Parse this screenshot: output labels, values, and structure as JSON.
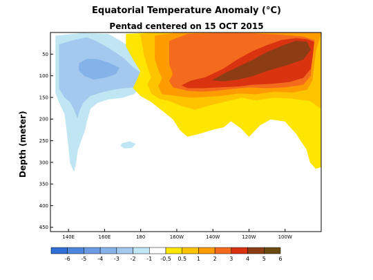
{
  "chart_data": {
    "type": "heatmap",
    "title": "Equatorial Temperature Anomaly (°C)",
    "subtitle": "Pentad centered on 15 OCT 2015",
    "ylabel": "Depth (meter)",
    "xlabel": "",
    "x_ticks": [
      "140E",
      "160E",
      "180",
      "160W",
      "140W",
      "120W",
      "100W"
    ],
    "x_tick_lon": [
      140,
      160,
      180,
      200,
      220,
      240,
      260
    ],
    "xlim": [
      130,
      280
    ],
    "y_ticks": [
      50,
      100,
      150,
      200,
      250,
      300,
      350,
      400,
      450
    ],
    "ylim": [
      0,
      460
    ],
    "y_inverted": true,
    "colorbar": {
      "labels": [
        "-6",
        "-5",
        "-4",
        "-3",
        "-2",
        "-1",
        "-0.5",
        "0.5",
        "1",
        "2",
        "3",
        "4",
        "5",
        "6"
      ],
      "colors": [
        "#2e6ed6",
        "#4d86dd",
        "#6a9be3",
        "#85b2e8",
        "#a3c9ee",
        "#bfe6f2",
        "#ffffff",
        "#ffe600",
        "#ffc400",
        "#fd9c00",
        "#f46b1d",
        "#d93310",
        "#8d3d14",
        "#6b4a10"
      ]
    },
    "anomaly_regions": [
      {
        "level": "-1 to -0.5",
        "lon_range": [
          133,
          190
        ],
        "depth_range": [
          0,
          320
        ]
      },
      {
        "level": "-2 to -1",
        "lon_range": [
          136,
          185
        ],
        "depth_range": [
          30,
          160
        ]
      },
      {
        "level": "-3 to -2",
        "lon_range": [
          146,
          168
        ],
        "depth_range": [
          60,
          110
        ]
      },
      {
        "level": "0.5 to 1",
        "lon_range": [
          170,
          280
        ],
        "depth_range": [
          0,
          310
        ]
      },
      {
        "level": "1 to 2",
        "lon_range": [
          178,
          280
        ],
        "depth_range": [
          0,
          180
        ]
      },
      {
        "level": "2 to 3",
        "lon_range": [
          188,
          277
        ],
        "depth_range": [
          0,
          150
        ]
      },
      {
        "level": "3 to 4",
        "lon_range": [
          195,
          276
        ],
        "depth_range": [
          10,
          130
        ]
      },
      {
        "level": "4 to 5",
        "lon_range": [
          203,
          276
        ],
        "depth_range": [
          10,
          125
        ]
      },
      {
        "level": "5 to 6",
        "lon_range": [
          220,
          274
        ],
        "depth_range": [
          15,
          115
        ]
      }
    ]
  }
}
